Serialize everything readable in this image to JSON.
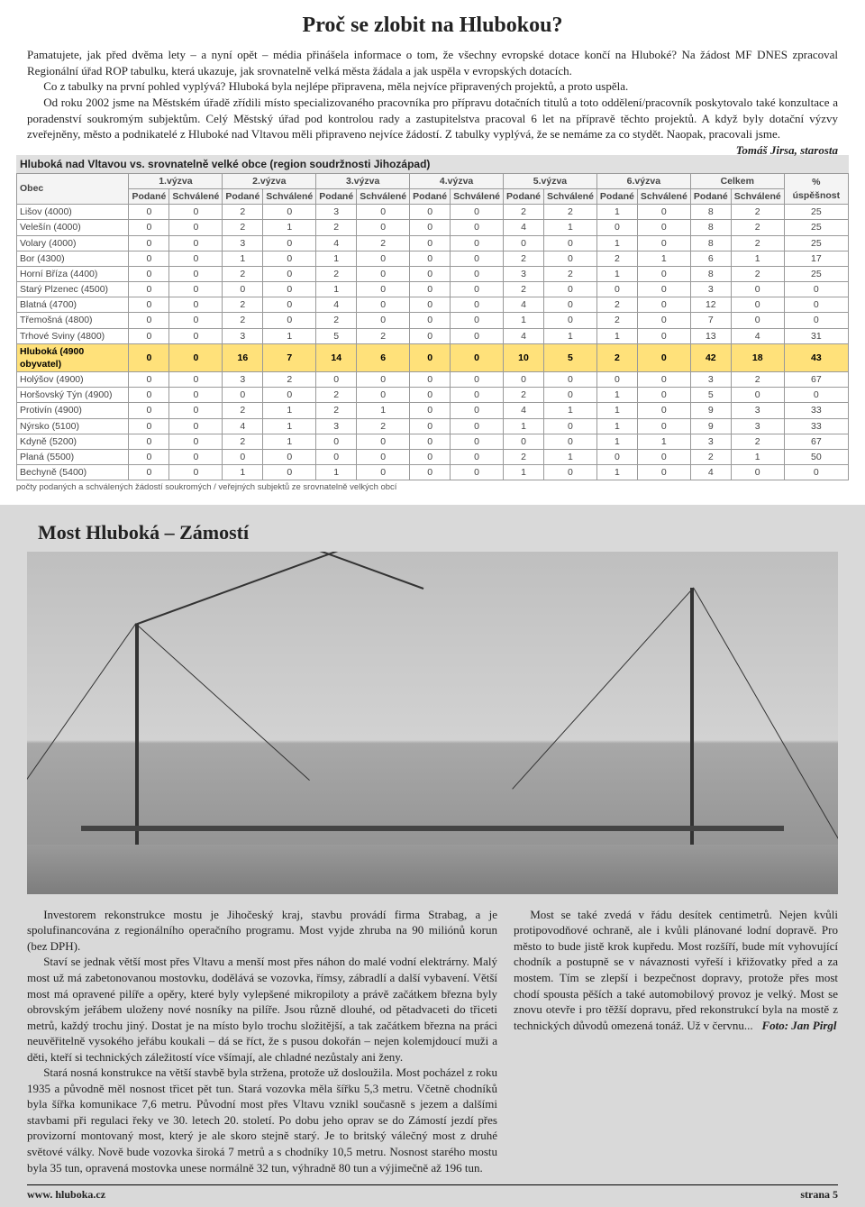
{
  "article1": {
    "title": "Proč se zlobit na Hlubokou?",
    "p1": "Pamatujete, jak před dvěma lety – a nyní opět – média přinášela informace o tom, že všechny evropské dotace končí na Hluboké? Na žádost MF DNES zpracoval Regionální úřad ROP tabulku, která ukazuje, jak srovnatelně velká města žádala a jak uspěla v evropských dotacích.",
    "p2": "Co z tabulky na první pohled vyplývá? Hluboká byla nejlépe připravena, měla nejvíce připravených projektů, a proto uspěla.",
    "p3": "Od roku 2002 jsme na Městském úřadě zřídili místo specializovaného pracovníka pro přípravu dotačních titulů a toto oddělení/pracovník poskytovalo také konzultace a poradenství soukromým subjektům. Celý Městský úřad pod kontrolou rady a zastupitelstva pracoval 6 let na přípravě těchto projektů. A když byly dotační výzvy zveřejněny, město a podnikatelé z Hluboké nad Vltavou měli připraveno nejvíce žádostí. Z tabulky vyplývá, že se nemáme za co stydět. Naopak, pracovali jsme.",
    "author": "Tomáš Jirsa, starosta"
  },
  "table": {
    "caption": "Hluboká nad Vltavou vs. srovnatelně velké obce (region soudržnosti Jihozápad)",
    "footnote": "počty podaných a schválených žádostí soukromých / veřejných subjektů ze srovnatelně velkých obcí",
    "group_headers": [
      "1.výzva",
      "2.výzva",
      "3.výzva",
      "4.výzva",
      "5.výzva",
      "6.výzva",
      "Celkem"
    ],
    "sub_headers": [
      "Podané",
      "Schválené"
    ],
    "col_obec": "Obec",
    "col_pct": "% úspěšnost",
    "rows": [
      {
        "obec": "Lišov (4000)",
        "v": [
          0,
          0,
          2,
          0,
          3,
          0,
          0,
          0,
          2,
          2,
          1,
          0,
          8,
          2
        ],
        "pct": 25
      },
      {
        "obec": "Velešín (4000)",
        "v": [
          0,
          0,
          2,
          1,
          2,
          0,
          0,
          0,
          4,
          1,
          0,
          0,
          8,
          2
        ],
        "pct": 25
      },
      {
        "obec": "Volary (4000)",
        "v": [
          0,
          0,
          3,
          0,
          4,
          2,
          0,
          0,
          0,
          0,
          1,
          0,
          8,
          2
        ],
        "pct": 25
      },
      {
        "obec": "Bor (4300)",
        "v": [
          0,
          0,
          1,
          0,
          1,
          0,
          0,
          0,
          2,
          0,
          2,
          1,
          6,
          1
        ],
        "pct": 17
      },
      {
        "obec": "Horní Bříza (4400)",
        "v": [
          0,
          0,
          2,
          0,
          2,
          0,
          0,
          0,
          3,
          2,
          1,
          0,
          8,
          2
        ],
        "pct": 25
      },
      {
        "obec": "Starý Plzenec (4500)",
        "v": [
          0,
          0,
          0,
          0,
          1,
          0,
          0,
          0,
          2,
          0,
          0,
          0,
          3,
          0
        ],
        "pct": 0
      },
      {
        "obec": "Blatná (4700)",
        "v": [
          0,
          0,
          2,
          0,
          4,
          0,
          0,
          0,
          4,
          0,
          2,
          0,
          12,
          0
        ],
        "pct": 0
      },
      {
        "obec": "Třemošná (4800)",
        "v": [
          0,
          0,
          2,
          0,
          2,
          0,
          0,
          0,
          1,
          0,
          2,
          0,
          7,
          0
        ],
        "pct": 0
      },
      {
        "obec": "Trhové Sviny (4800)",
        "v": [
          0,
          0,
          3,
          1,
          5,
          2,
          0,
          0,
          4,
          1,
          1,
          0,
          13,
          4
        ],
        "pct": 31
      },
      {
        "obec": "Hluboká (4900 obyvatel)",
        "v": [
          0,
          0,
          16,
          7,
          14,
          6,
          0,
          0,
          10,
          5,
          2,
          0,
          42,
          18
        ],
        "pct": 43,
        "hl": true
      },
      {
        "obec": "Holýšov (4900)",
        "v": [
          0,
          0,
          3,
          2,
          0,
          0,
          0,
          0,
          0,
          0,
          0,
          0,
          3,
          2
        ],
        "pct": 67
      },
      {
        "obec": "Horšovský Týn (4900)",
        "v": [
          0,
          0,
          0,
          0,
          2,
          0,
          0,
          0,
          2,
          0,
          1,
          0,
          5,
          0
        ],
        "pct": 0
      },
      {
        "obec": "Protivín (4900)",
        "v": [
          0,
          0,
          2,
          1,
          2,
          1,
          0,
          0,
          4,
          1,
          1,
          0,
          9,
          3
        ],
        "pct": 33
      },
      {
        "obec": "Nýrsko (5100)",
        "v": [
          0,
          0,
          4,
          1,
          3,
          2,
          0,
          0,
          1,
          0,
          1,
          0,
          9,
          3
        ],
        "pct": 33
      },
      {
        "obec": "Kdyně (5200)",
        "v": [
          0,
          0,
          2,
          1,
          0,
          0,
          0,
          0,
          0,
          0,
          1,
          1,
          3,
          2
        ],
        "pct": 67
      },
      {
        "obec": "Planá (5500)",
        "v": [
          0,
          0,
          0,
          0,
          0,
          0,
          0,
          0,
          2,
          1,
          0,
          0,
          2,
          1
        ],
        "pct": 50
      },
      {
        "obec": "Bechyně (5400)",
        "v": [
          0,
          0,
          1,
          0,
          1,
          0,
          0,
          0,
          1,
          0,
          1,
          0,
          4,
          0
        ],
        "pct": 0
      }
    ]
  },
  "article2": {
    "title": "Most Hluboká – Zámostí",
    "left": [
      "Investorem rekonstrukce mostu je Jihočeský kraj, stavbu provádí firma Strabag, a je spolufinancována z regionálního operačního programu. Most vyjde zhruba na 90 miliónů korun (bez DPH).",
      "Staví se jednak větší most přes Vltavu a menší most přes náhon do malé vodní elektrárny. Malý most už má zabetonovanou mostovku, dodělává se vozovka, římsy, zábradlí a další vybavení. Větší most má opravené pilíře a opěry, které byly vylepšené mikropiloty a právě začátkem března byly obrovským jeřábem uloženy nové nosníky na pilíře. Jsou různě dlouhé, od pětadvaceti do třiceti metrů, každý trochu jiný. Dostat je na místo bylo trochu složitější, a tak začátkem března na práci neuvěřitelně vysokého jeřábu koukali – dá se říct, že s pusou dokořán – nejen kolemjdoucí muži a děti, kteří si technických záležitostí více všímají, ale chladné nezůstaly ani ženy.",
      "Stará nosná konstrukce na větší stavbě byla stržena, protože už dosloužila. Most pocházel z roku 1935 a původně měl nosnost třicet pět tun. Stará vozovka měla šířku 5,3 metru. Včetně chodníků byla šířka komunikace 7,6 metru. Původní most přes Vltavu vznikl současně s jezem a dalšími stavbami při regulaci řeky ve 30. letech 20. století. Po dobu jeho oprav se do Zámostí jezdí přes provizorní montovaný most, který je ale skoro stejně starý. Je to britský válečný most z druhé světové války.  Nově bude vozovka  široká 7 metrů a s chodníky 10,5 metru. Nosnost starého mostu byla 35 tun, opravená mostovka unese normálně 32 tun, výhradně 80 tun a výjimečně až 196 tun."
    ],
    "right": [
      "Most se také zvedá v řádu desítek centimetrů. Nejen kvůli protipovodňové ochraně, ale i kvůli plánované lodní dopravě. Pro město to bude jistě krok kupředu. Most rozšíří, bude mít vyhovující chodník a postupně se v návaznosti vyřeší i křižovatky před a za mostem. Tím se zlepší i bezpečnost dopravy, protože přes most chodí spousta pěších a také automobilový provoz je velký. Most se znovu otevře i pro těžší dopravu, před rekonstrukcí byla na mostě z technických důvodů omezená tonáž. Už v červnu..."
    ],
    "photo_credit": "Foto: Jan Pirgl"
  },
  "footer": {
    "site": "www. hluboka.cz",
    "page": "strana 5"
  },
  "colors": {
    "highlight_row": "#ffe17a",
    "page_bg": "#f0f0f0",
    "section2_bg": "#d9d9d9"
  }
}
